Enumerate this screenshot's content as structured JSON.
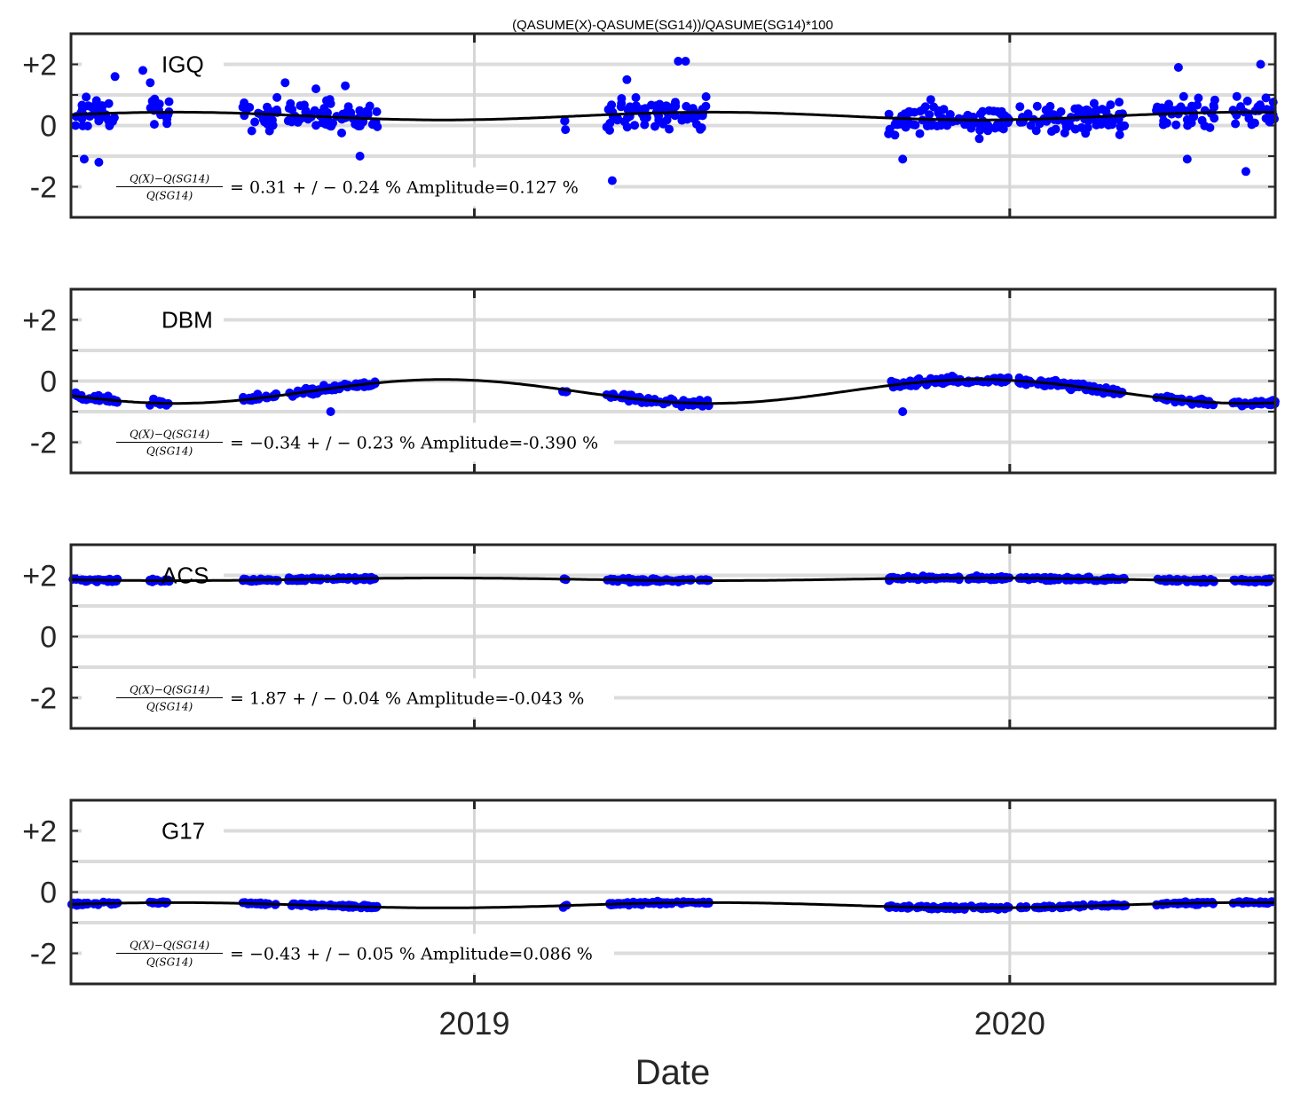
{
  "title": "(QASUME(X)-QASUME(SG14))/QASUME(SG14)*100",
  "chart_data": {
    "type": "scatter",
    "xlabel": "Date",
    "x_ticks": [
      "2019",
      "2020"
    ],
    "x_range": [
      "2018-04-01",
      "2020-06-30"
    ],
    "y_range": [
      -3.0,
      3.0
    ],
    "y_ticks": [
      "-2",
      "0",
      "+2"
    ],
    "grid": true,
    "fraction_numerator": "Q(X)−Q(SG14)",
    "fraction_denominator": "Q(SG14)",
    "marker_color": "#0000ff",
    "fit_color": "#000000",
    "panels": [
      {
        "station": "IGQ",
        "stat_text": "= 0.31 + / − 0.24 % Amplitude=0.127 %",
        "mean": 0.31,
        "std": 0.24,
        "amplitude": 0.127,
        "spread": 0.55,
        "outliers": [
          [
            "2018-04-10",
            -1.1
          ],
          [
            "2018-04-20",
            -1.2
          ],
          [
            "2018-05-01",
            1.6
          ],
          [
            "2018-05-20",
            1.8
          ],
          [
            "2018-05-25",
            1.4
          ],
          [
            "2018-08-25",
            1.4
          ],
          [
            "2018-09-15",
            1.2
          ],
          [
            "2018-10-05",
            1.3
          ],
          [
            "2018-10-15",
            -1.0
          ],
          [
            "2019-04-05",
            -1.8
          ],
          [
            "2019-04-15",
            1.5
          ],
          [
            "2019-05-20",
            2.1
          ],
          [
            "2019-05-25",
            2.1
          ],
          [
            "2019-10-20",
            -1.1
          ],
          [
            "2020-04-25",
            1.9
          ],
          [
            "2020-05-01",
            -1.1
          ],
          [
            "2020-06-10",
            -1.5
          ],
          [
            "2020-06-20",
            2.0
          ]
        ]
      },
      {
        "station": "DBM",
        "stat_text": "= −0.34 + / − 0.23 % Amplitude=-0.390 %",
        "mean": -0.34,
        "std": 0.23,
        "amplitude": -0.39,
        "spread": 0.12,
        "outliers": [
          [
            "2018-09-25",
            -1.0
          ],
          [
            "2019-10-20",
            -1.0
          ]
        ]
      },
      {
        "station": "ACS",
        "stat_text": "= 1.87 + / − 0.04 % Amplitude=-0.043 %",
        "mean": 1.87,
        "std": 0.04,
        "amplitude": -0.043,
        "spread": 0.06,
        "outliers": []
      },
      {
        "station": "G17",
        "stat_text": "= −0.43 + / − 0.05 % Amplitude=0.086 %",
        "mean": -0.43,
        "std": 0.05,
        "amplitude": 0.086,
        "spread": 0.05,
        "outliers": []
      }
    ],
    "campaign_periods": [
      [
        "2018-04-01",
        "2018-05-03"
      ],
      [
        "2018-05-24",
        "2018-06-07"
      ],
      [
        "2018-07-27",
        "2018-08-20"
      ],
      [
        "2018-08-27",
        "2018-10-27"
      ],
      [
        "2019-03-02",
        "2019-03-05"
      ],
      [
        "2019-04-01",
        "2019-06-10"
      ],
      [
        "2019-10-10",
        "2020-01-01"
      ],
      [
        "2020-01-07",
        "2020-03-20"
      ],
      [
        "2020-04-10",
        "2020-05-20"
      ],
      [
        "2020-06-01",
        "2020-06-30"
      ]
    ]
  }
}
